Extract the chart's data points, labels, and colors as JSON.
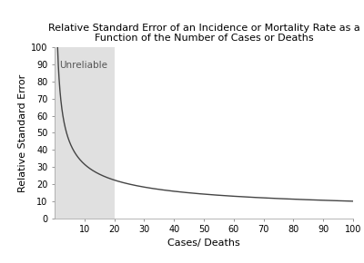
{
  "title_line1": "Relative Standard Error of an Incidence or Mortality Rate as a",
  "title_line2": "Function of the Number of Cases or Deaths",
  "xlabel": "Cases/ Deaths",
  "ylabel": "Relative Standard Error",
  "xlim": [
    0,
    100
  ],
  "ylim": [
    0,
    100
  ],
  "xticks": [
    10,
    20,
    30,
    40,
    50,
    60,
    70,
    80,
    90,
    100
  ],
  "yticks": [
    0,
    10,
    20,
    30,
    40,
    50,
    60,
    70,
    80,
    90,
    100
  ],
  "unreliable_xmax": 20,
  "unreliable_label": "Unreliable",
  "unreliable_color": "#e0e0e0",
  "curve_color": "#444444",
  "curve_linewidth": 1.0,
  "background_color": "#ffffff",
  "title_fontsize": 8,
  "axis_label_fontsize": 8,
  "tick_fontsize": 7,
  "unreliable_fontsize": 7.5,
  "x_start": 1,
  "x_end": 100,
  "rse_scale": 100
}
